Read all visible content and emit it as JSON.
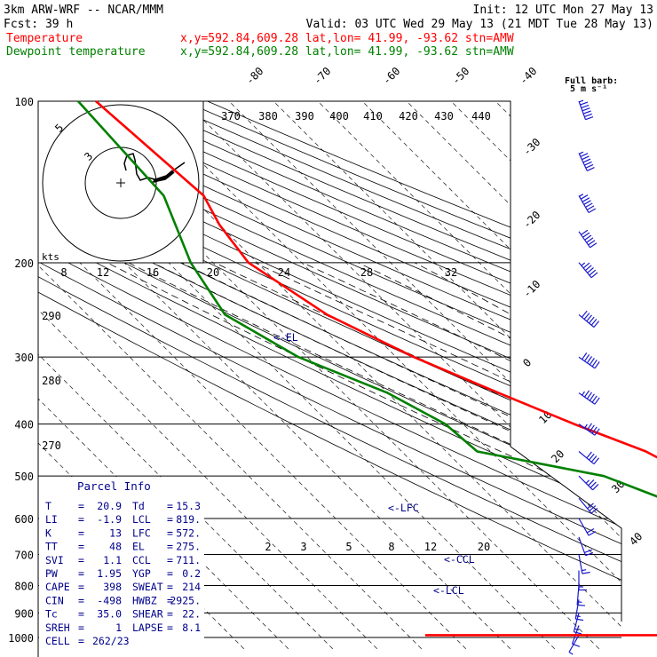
{
  "header": {
    "line1_left": "3km ARW-WRF -- NCAR/MMM",
    "line1_right": "Init: 12 UTC Mon 27 May 13",
    "line2_left": "Fcst:    39 h",
    "line2_right": "Valid: 03 UTC Wed 29 May 13 (21 MDT Tue 28 May 13)"
  },
  "legend": [
    {
      "label": "Temperature",
      "info": "x,y=592.84,609.28   lat,lon= 41.99, -93.62  stn=AMW",
      "color": "#ff0000"
    },
    {
      "label": "Dewpoint temperature",
      "info": "x,y=592.84,609.28   lat,lon= 41.99, -93.62  stn=AMW",
      "color": "#008000"
    }
  ],
  "barb_key": {
    "line1": "Full barb:",
    "line2": "5 m s⁻¹"
  },
  "chart_data": {
    "type": "line",
    "subtype": "skew-t log-p sounding",
    "y_axis": {
      "label": "",
      "scale": "log",
      "range": [
        1000,
        100
      ],
      "ticks": [
        100,
        200,
        300,
        400,
        500,
        600,
        700,
        800,
        900,
        1000
      ]
    },
    "isotherm_labels": [
      {
        "text": "-80"
      },
      {
        "text": "-70"
      },
      {
        "text": "-60"
      },
      {
        "text": "-50"
      },
      {
        "text": "-40"
      },
      {
        "text": "-30"
      },
      {
        "text": "-20"
      },
      {
        "text": "-10"
      },
      {
        "text": "0"
      },
      {
        "text": "10"
      },
      {
        "text": "20"
      },
      {
        "text": "30"
      },
      {
        "text": "40"
      }
    ],
    "theta_labels": [
      "370",
      "380",
      "390",
      "400",
      "410",
      "420",
      "430",
      "440",
      "290",
      "280",
      "270"
    ],
    "mixing_ratio_labels": [
      "2",
      "3",
      "5",
      "8",
      "12",
      "20"
    ],
    "series": [
      {
        "name": "Temperature",
        "color": "#ff0000",
        "points": [
          [
            100,
            -60
          ],
          [
            150,
            -57
          ],
          [
            170,
            -60
          ],
          [
            200,
            -62
          ],
          [
            250,
            -56
          ],
          [
            300,
            -46
          ],
          [
            350,
            -35
          ],
          [
            400,
            -25
          ],
          [
            450,
            -15
          ],
          [
            500,
            -10
          ],
          [
            550,
            -4
          ],
          [
            600,
            1
          ],
          [
            650,
            6
          ],
          [
            700,
            10
          ],
          [
            750,
            14
          ],
          [
            800,
            16
          ],
          [
            850,
            18
          ],
          [
            900,
            19
          ],
          [
            950,
            22
          ],
          [
            970,
            22
          ]
        ]
      },
      {
        "name": "Dewpoint temperature",
        "color": "#008000",
        "points": [
          [
            100,
            -64
          ],
          [
            150,
            -66
          ],
          [
            200,
            -75
          ],
          [
            250,
            -79
          ],
          [
            300,
            -72
          ],
          [
            350,
            -60
          ],
          [
            400,
            -54
          ],
          [
            450,
            -53
          ],
          [
            500,
            -30
          ],
          [
            550,
            -22
          ],
          [
            600,
            -20
          ],
          [
            650,
            -17
          ],
          [
            700,
            -13
          ],
          [
            750,
            -9
          ],
          [
            800,
            -5
          ],
          [
            850,
            5
          ],
          [
            900,
            13
          ],
          [
            950,
            15
          ]
        ]
      }
    ],
    "annotations": [
      "<-EL",
      "<-LFC",
      "<-CCL",
      "<-LCL"
    ],
    "hodograph": {
      "speed_ring_labels": [
        "5",
        "3"
      ],
      "kts_label": "kts",
      "axis_labels": [
        "8",
        "12",
        "16",
        "20",
        "24",
        "28",
        "32"
      ]
    },
    "wind_barbs": [
      {
        "p": 100,
        "dir": 200,
        "spd": 40
      },
      {
        "p": 125,
        "dir": 205,
        "spd": 38
      },
      {
        "p": 150,
        "dir": 210,
        "spd": 34
      },
      {
        "p": 175,
        "dir": 215,
        "spd": 30
      },
      {
        "p": 200,
        "dir": 220,
        "spd": 28
      },
      {
        "p": 250,
        "dir": 230,
        "spd": 30
      },
      {
        "p": 300,
        "dir": 235,
        "spd": 30
      },
      {
        "p": 350,
        "dir": 235,
        "spd": 28
      },
      {
        "p": 400,
        "dir": 235,
        "spd": 24
      },
      {
        "p": 450,
        "dir": 230,
        "spd": 20
      },
      {
        "p": 500,
        "dir": 225,
        "spd": 18
      },
      {
        "p": 550,
        "dir": 220,
        "spd": 15
      },
      {
        "p": 600,
        "dir": 210,
        "spd": 12
      },
      {
        "p": 650,
        "dir": 200,
        "spd": 10
      },
      {
        "p": 700,
        "dir": 190,
        "spd": 9
      },
      {
        "p": 750,
        "dir": 180,
        "spd": 8
      },
      {
        "p": 800,
        "dir": 175,
        "spd": 8
      },
      {
        "p": 850,
        "dir": 170,
        "spd": 9
      },
      {
        "p": 900,
        "dir": 165,
        "spd": 9
      },
      {
        "p": 950,
        "dir": 160,
        "spd": 6
      },
      {
        "p": 990,
        "dir": 150,
        "spd": 3
      }
    ]
  },
  "parcel_info": {
    "title": "Parcel Info",
    "rows": [
      {
        "k1": "T",
        "v1": "20.9",
        "k2": "Td",
        "v2": "15.3"
      },
      {
        "k1": "LI",
        "v1": "-1.9",
        "k2": "LCL",
        "v2": "819."
      },
      {
        "k1": "K",
        "v1": "13",
        "k2": "LFC",
        "v2": "572."
      },
      {
        "k1": "TT",
        "v1": "48",
        "k2": "EL",
        "v2": "275."
      },
      {
        "k1": "SVI",
        "v1": "1.1",
        "k2": "CCL",
        "v2": "711."
      },
      {
        "k1": "PW",
        "v1": "1.95",
        "k2": "YGP",
        "v2": "0.2"
      },
      {
        "k1": "CAPE",
        "v1": "398",
        "k2": "SWEAT",
        "v2": "214"
      },
      {
        "k1": "CIN",
        "v1": "-498",
        "k2": "HWBZ",
        "v2": "2925."
      },
      {
        "k1": "Tc",
        "v1": "35.0",
        "k2": "SHEAR",
        "v2": "22."
      },
      {
        "k1": "SREH",
        "v1": "1",
        "k2": "LAPSE",
        "v2": "8.1"
      },
      {
        "k1": "CELL",
        "v1": "262/23",
        "k2": "",
        "v2": ""
      }
    ]
  }
}
